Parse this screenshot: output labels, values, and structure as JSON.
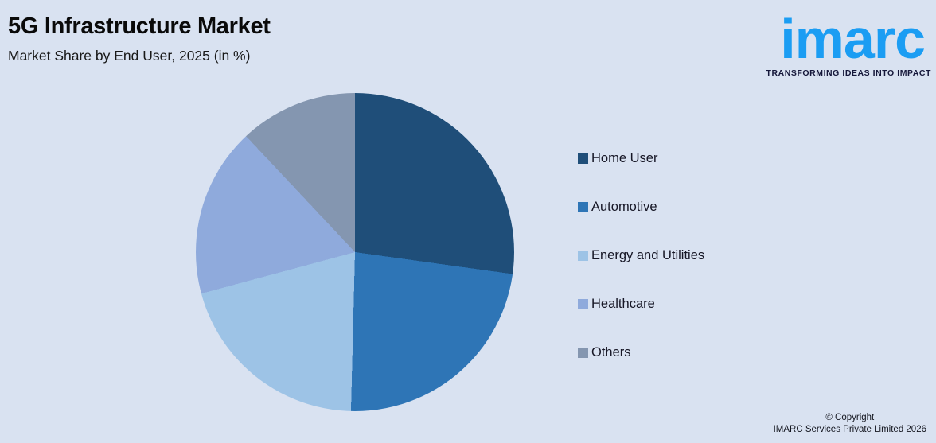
{
  "page": {
    "background_color": "#d9e2f1"
  },
  "header": {
    "title": "5G Infrastructure Market",
    "subtitle": "Market Share by End User, 2025 (in %)"
  },
  "branding": {
    "logo_text": "imarc",
    "tagline": "TRANSFORMING IDEAS INTO IMPACT",
    "logo_color": "#1b9df3",
    "tagline_color": "#15173a"
  },
  "chart_data": {
    "type": "pie",
    "title": "5G Infrastructure Market",
    "subtitle": "Market Share by End User, 2025 (in %)",
    "labels": [
      "Home User",
      "Automotive",
      "Energy and Utilities",
      "Healthcare",
      "Others"
    ],
    "values": [
      27.2,
      23.2,
      20.4,
      17.2,
      12.0
    ],
    "colors": [
      "#1f4e79",
      "#2e75b6",
      "#9dc3e6",
      "#8faadc",
      "#8496b0"
    ],
    "unit": "%",
    "start_angle_deg": 0,
    "direction": "clockwise",
    "legend_position": "right",
    "data_labels_visible": false
  },
  "footer": {
    "line1": "© Copyright",
    "line2": "IMARC Services Private Limited 2026"
  }
}
